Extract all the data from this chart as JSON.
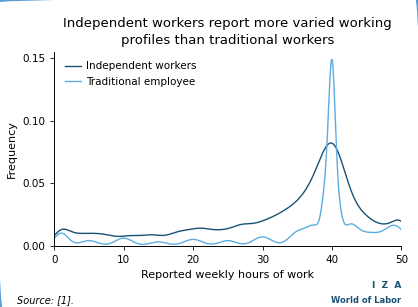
{
  "title": "Independent workers report more varied working\nprofiles than traditional workers",
  "xlabel": "Reported weekly hours of work",
  "ylabel": "Frequency",
  "xlim": [
    0,
    50
  ],
  "ylim": [
    0,
    0.155
  ],
  "yticks": [
    0,
    0.05,
    0.1,
    0.15
  ],
  "xticks": [
    0,
    10,
    20,
    30,
    40,
    50
  ],
  "source_text": "Source: [1].",
  "iza_line1": "I  Z  A",
  "iza_line2": "World of Labor",
  "legend_labels": [
    "Independent workers",
    "Traditional employee"
  ],
  "independent_color": "#1a5276",
  "traditional_color": "#5dade2",
  "background_color": "#ffffff",
  "border_color": "#5b9bd5",
  "title_fontsize": 9.5,
  "axis_label_fontsize": 8,
  "tick_fontsize": 7.5,
  "source_fontsize": 7,
  "legend_fontsize": 7.5
}
